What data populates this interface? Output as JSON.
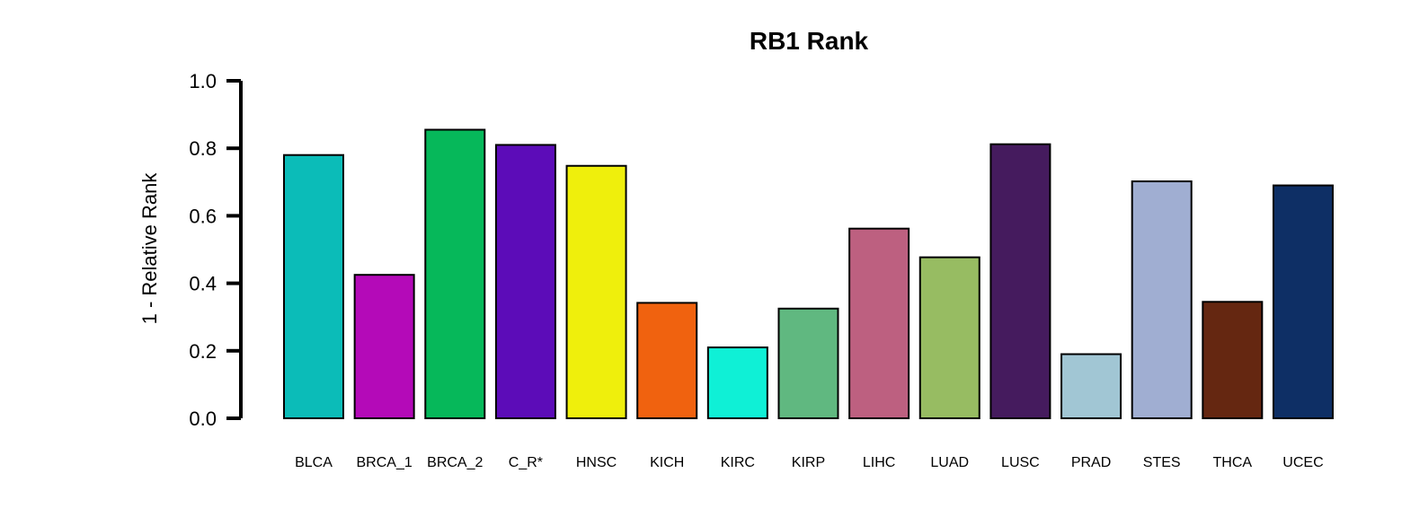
{
  "chart_data": {
    "type": "bar",
    "title": "RB1 Rank",
    "xlabel": "",
    "ylabel": "1 - Relative Rank",
    "ylim": [
      0,
      1
    ],
    "yticks": [
      "0.0",
      "0.2",
      "0.4",
      "0.6",
      "0.8",
      "1.0"
    ],
    "grid": false,
    "categories": [
      "BLCA",
      "BRCA_1",
      "BRCA_2",
      "C_R*",
      "HNSC",
      "KICH",
      "KIRC",
      "KIRP",
      "LIHC",
      "LUAD",
      "LUSC",
      "PRAD",
      "STES",
      "THCA",
      "UCEC"
    ],
    "values": [
      0.78,
      0.425,
      0.855,
      0.81,
      0.748,
      0.342,
      0.21,
      0.325,
      0.562,
      0.477,
      0.812,
      0.19,
      0.702,
      0.345,
      0.69
    ],
    "colors": [
      "#0bbcb8",
      "#b40ab8",
      "#06b85a",
      "#5c0cb8",
      "#efef0c",
      "#f0620f",
      "#0ff0d6",
      "#60b880",
      "#bd6080",
      "#97bc62",
      "#451b5e",
      "#a1c6d4",
      "#a0aed2",
      "#652711",
      "#0e2f65"
    ]
  }
}
